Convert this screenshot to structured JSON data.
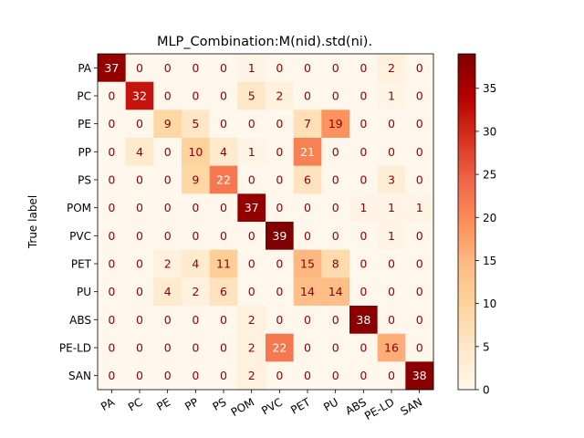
{
  "chart_data": {
    "type": "heatmap",
    "title": "MLP_Combination:M(nid).std(ni).",
    "ylabel": "True label",
    "xlabel": "",
    "labels": [
      "PA",
      "PC",
      "PE",
      "PP",
      "PS",
      "POM",
      "PVC",
      "PET",
      "PU",
      "ABS",
      "PE-LD",
      "SAN"
    ],
    "matrix": [
      [
        37,
        0,
        0,
        0,
        0,
        1,
        0,
        0,
        0,
        0,
        2,
        0
      ],
      [
        0,
        32,
        0,
        0,
        0,
        5,
        2,
        0,
        0,
        0,
        1,
        0
      ],
      [
        0,
        0,
        9,
        5,
        0,
        0,
        0,
        7,
        19,
        0,
        0,
        0
      ],
      [
        0,
        4,
        0,
        10,
        4,
        1,
        0,
        21,
        0,
        0,
        0,
        0
      ],
      [
        0,
        0,
        0,
        9,
        22,
        0,
        0,
        6,
        0,
        0,
        3,
        0
      ],
      [
        0,
        0,
        0,
        0,
        0,
        37,
        0,
        0,
        0,
        1,
        1,
        1
      ],
      [
        0,
        0,
        0,
        0,
        0,
        0,
        39,
        0,
        0,
        0,
        1,
        0
      ],
      [
        0,
        0,
        2,
        4,
        11,
        0,
        0,
        15,
        8,
        0,
        0,
        0
      ],
      [
        0,
        0,
        4,
        2,
        6,
        0,
        0,
        14,
        14,
        0,
        0,
        0
      ],
      [
        0,
        0,
        0,
        0,
        0,
        2,
        0,
        0,
        0,
        38,
        0,
        0
      ],
      [
        0,
        0,
        0,
        0,
        0,
        2,
        22,
        0,
        0,
        0,
        16,
        0
      ],
      [
        0,
        0,
        0,
        0,
        0,
        2,
        0,
        0,
        0,
        0,
        0,
        38
      ]
    ],
    "colormap": "OrRd",
    "vmin": 0,
    "vmax": 39,
    "colorbar_ticks": [
      0,
      5,
      10,
      15,
      20,
      25,
      30,
      35
    ],
    "text_color_dark_bg": "#ffffff",
    "text_color_light_bg": "#8b0000"
  }
}
